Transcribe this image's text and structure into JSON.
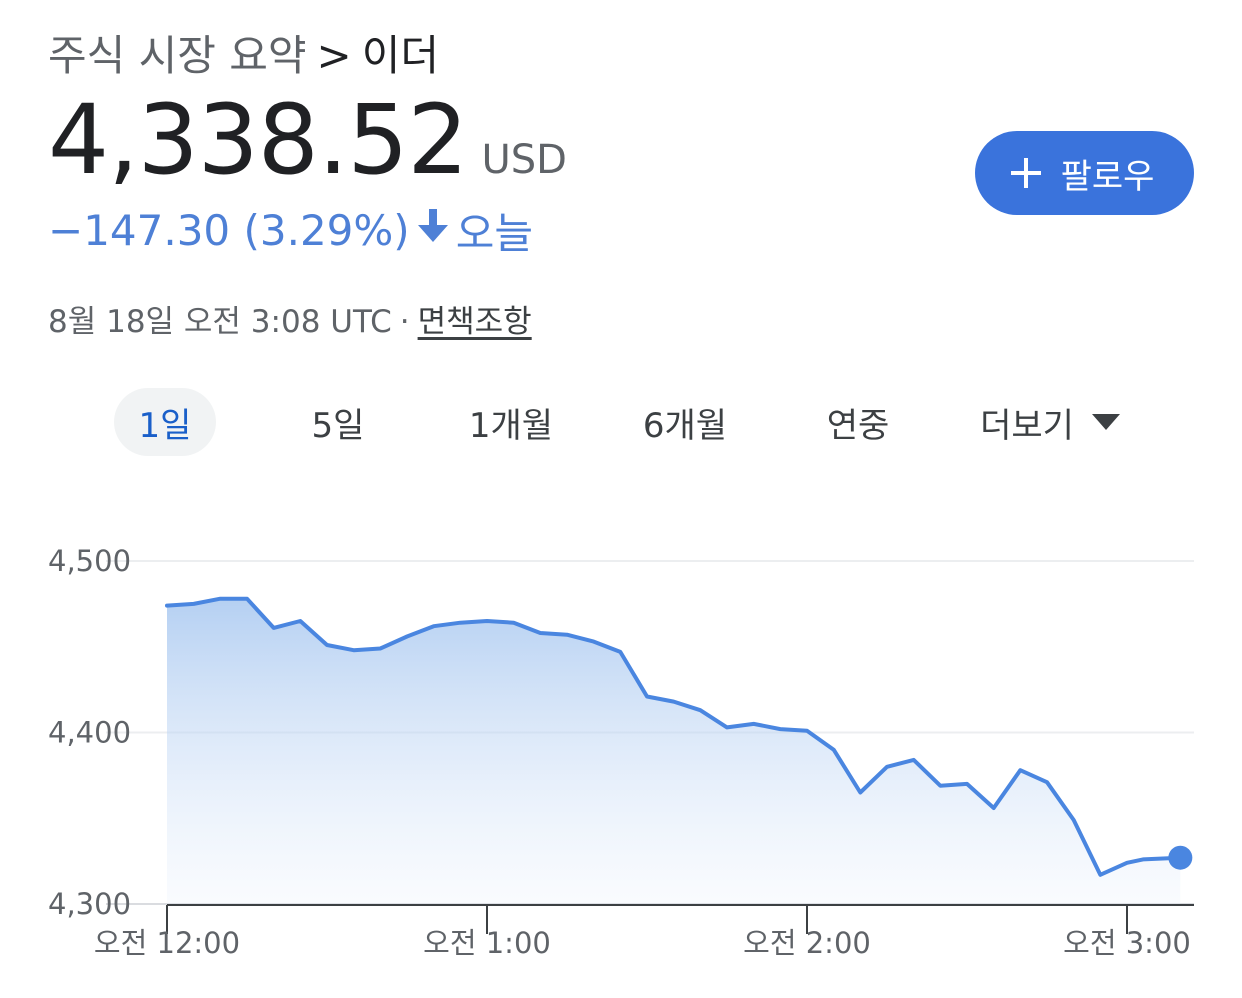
{
  "breadcrumb": {
    "parent": "주식 시장 요약",
    "separator": ">",
    "current": "이더"
  },
  "quote": {
    "price": "4,338.52",
    "currency": "USD",
    "change": "−147.30 (3.29%)",
    "change_direction": "down",
    "period": "오늘"
  },
  "timestamp": {
    "text": "8월 18일 오전 3:08 UTC",
    "separator": "·",
    "disclaimer": "면책조항"
  },
  "follow_button": {
    "label": "팔로우",
    "icon": "plus-icon"
  },
  "range_tabs": {
    "items": [
      "1일",
      "5일",
      "1개월",
      "6개월",
      "연중",
      "더보기"
    ],
    "active": "1일",
    "more_icon": "caret-down-icon"
  },
  "colors": {
    "accent": "#3a73dc",
    "line": "#4a86e0",
    "change_down": "#4e80d6",
    "active_tab_text": "#1a5fc9"
  },
  "chart_data": {
    "type": "area",
    "y_ticks": [
      "4,500",
      "4,400",
      "4,300"
    ],
    "y_tick_values": [
      4500,
      4400,
      4300
    ],
    "ylim": [
      4300,
      4500
    ],
    "x_ticks": [
      "오전 12:00",
      "오전 1:00",
      "오전 2:00",
      "오전 3:00"
    ],
    "x_tick_values": [
      0,
      60,
      120,
      180
    ],
    "xlim": [
      0,
      192
    ],
    "grid": true,
    "series": [
      {
        "x": [
          0,
          5,
          10,
          15,
          20,
          25,
          30,
          35,
          40,
          45,
          50,
          55,
          60,
          65,
          70,
          75,
          80,
          85,
          90,
          95,
          100,
          105,
          110,
          115,
          120,
          125,
          130,
          135,
          140,
          145,
          150,
          155,
          160,
          165,
          170,
          175,
          180,
          183,
          190
        ],
        "values": [
          4474,
          4475,
          4478,
          4478,
          4461,
          4465,
          4451,
          4448,
          4449,
          4456,
          4462,
          4464,
          4465,
          4464,
          4458,
          4457,
          4453,
          4447,
          4421,
          4418,
          4413,
          4403,
          4405,
          4402,
          4401,
          4390,
          4365,
          4380,
          4384,
          4369,
          4370,
          4356,
          4378,
          4371,
          4349,
          4317,
          4324,
          4326,
          4327
        ]
      }
    ]
  }
}
